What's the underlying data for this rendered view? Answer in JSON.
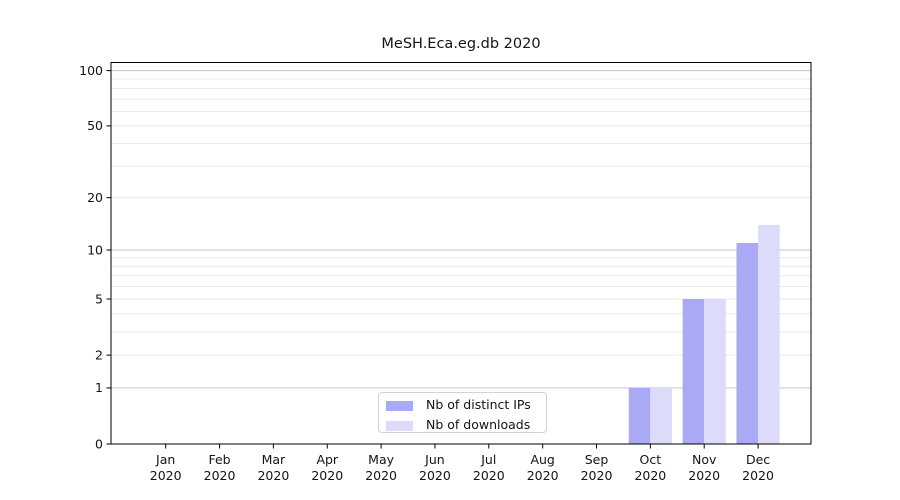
{
  "figure": {
    "title": "MeSH.Eca.eg.db 2020"
  },
  "chart_data": {
    "type": "bar",
    "title": "MeSH.Eca.eg.db 2020",
    "categories": [
      "Jan",
      "Feb",
      "Mar",
      "Apr",
      "May",
      "Jun",
      "Jul",
      "Aug",
      "Sep",
      "Oct",
      "Nov",
      "Dec"
    ],
    "year": "2020",
    "series": [
      {
        "name": "Nb of distinct IPs",
        "color": "#a9a9f5",
        "values": [
          0,
          0,
          0,
          0,
          0,
          0,
          0,
          0,
          0,
          1,
          5,
          11
        ]
      },
      {
        "name": "Nb of downloads",
        "color": "#dcdcfa",
        "values": [
          0,
          0,
          0,
          0,
          0,
          0,
          0,
          0,
          0,
          1,
          5,
          14
        ]
      }
    ],
    "yaxis": {
      "scale": "log10(1+x)",
      "tick_labels": [
        0,
        1,
        2,
        5,
        10,
        20,
        50,
        100
      ],
      "major_gridlines": [
        1,
        10,
        100
      ],
      "minor_gridlines": [
        2,
        3,
        4,
        5,
        6,
        7,
        8,
        9,
        20,
        30,
        40,
        50,
        60,
        70,
        80,
        90
      ],
      "ylim": [
        0,
        110
      ]
    },
    "grid": "on",
    "legend_position": "lower center",
    "colors": {
      "grid_major": "#c6c6c6",
      "grid_minor": "#e9e9e9",
      "spine": "#000000",
      "tick_text": "#141414"
    }
  }
}
